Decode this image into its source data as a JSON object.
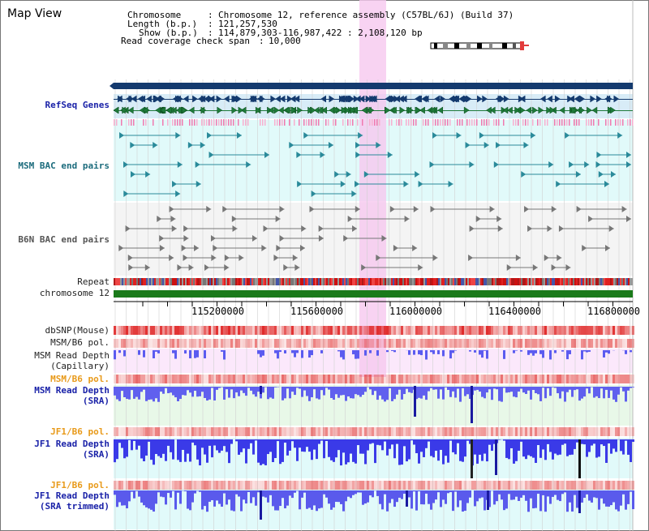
{
  "title": "Map View",
  "info": {
    "chromosome_label": "Chromosome",
    "chromosome_value": "Chromosome 12, reference assembly (C57BL/6J) (Build 37)",
    "length_label": "Length (b.p.)",
    "length_value": "121,257,530",
    "show_label": "Show (b.p.)",
    "show_value": "114,879,303-116,987,422 : 2,108,120 bp",
    "coverage_label": "Read coverage check span",
    "coverage_value": "10,000"
  },
  "tracks": {
    "refseq": "RefSeq Genes",
    "msm_bac": "MSM BAC end pairs",
    "b6n_bac": "B6N BAC end pairs",
    "repeat": "Repeat",
    "chromosome": "chromosome 12",
    "dbsnp": "dbSNP(Mouse)",
    "msm_b6_pol_1": "MSM/B6 pol.",
    "msm_depth_cap_1": "MSM Read Depth",
    "msm_depth_cap_2": "(Capillary)",
    "msm_b6_pol_2": "MSM/B6 pol.",
    "msm_depth_sra_1": "MSM Read Depth",
    "msm_depth_sra_2": "(SRA)",
    "jf1_b6_pol_1": "JF1/B6 pol.",
    "jf1_depth_sra_1": "JF1 Read Depth",
    "jf1_depth_sra_2": "(SRA)",
    "jf1_b6_pol_2": "JF1/B6 pol.",
    "jf1_depth_trim_1": "JF1 Read Depth",
    "jf1_depth_trim_2": "(SRA trimmed)"
  },
  "axis_ticks": [
    "115200000",
    "115600000",
    "116000000",
    "116400000",
    "116800000"
  ],
  "colors": {
    "highlight": "#f6c8ef",
    "gene_navy": "#143a6e",
    "gene_green": "#1f7a3a",
    "bac_teal": "#2a8a9a",
    "bac_gray": "#777777",
    "chromosome_bar": "#1a7a1a",
    "depth_blue": "#5b5bf0",
    "pol_red": "#e03030"
  }
}
